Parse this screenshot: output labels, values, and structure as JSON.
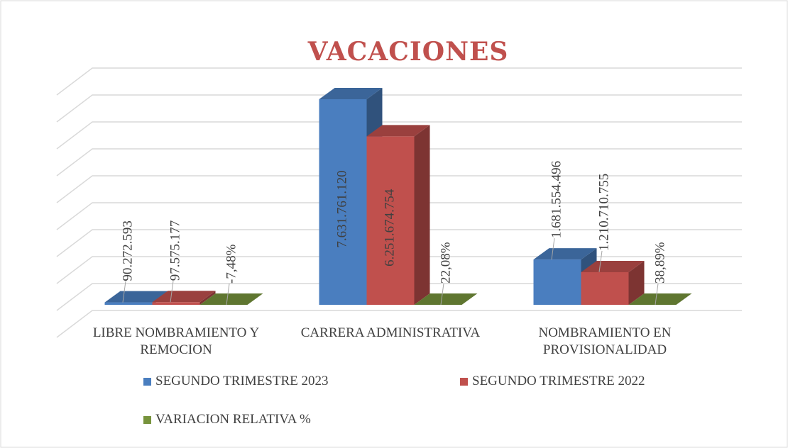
{
  "chart_data": {
    "type": "bar3d",
    "title": "VACACIONES",
    "categories": [
      "LIBRE NOMBRAMIENTO Y REMOCION",
      "CARRERA ADMINISTRATIVA",
      "NOMBRAMIENTO EN PROVISIONALIDAD"
    ],
    "series": [
      {
        "name": "SEGUNDO TRIMESTRE 2023",
        "color": "#4a7ebf",
        "values": [
          90272593,
          7631761120,
          1681554496
        ],
        "value_labels": [
          "90.272.593",
          "7.631.761.120",
          "1.681.554.496"
        ]
      },
      {
        "name": "SEGUNDO TRIMESTRE 2022",
        "color": "#c0504d",
        "values": [
          97575177,
          6251674754,
          1210710755
        ],
        "value_labels": [
          "97.575.177",
          "6.251.674.754",
          "1.210.710.755"
        ]
      },
      {
        "name": "VARIACION RELATIVA %",
        "color": "#77933c",
        "values": [
          -7.48,
          22.08,
          38.89
        ],
        "value_labels": [
          "-7,48%",
          "22,08%",
          "38,89%"
        ]
      }
    ],
    "ylim": [
      0,
      9000000000
    ],
    "yticks": [
      0,
      1000000000,
      2000000000,
      3000000000,
      4000000000,
      5000000000,
      6000000000,
      7000000000,
      8000000000,
      9000000000
    ],
    "grid": true
  }
}
